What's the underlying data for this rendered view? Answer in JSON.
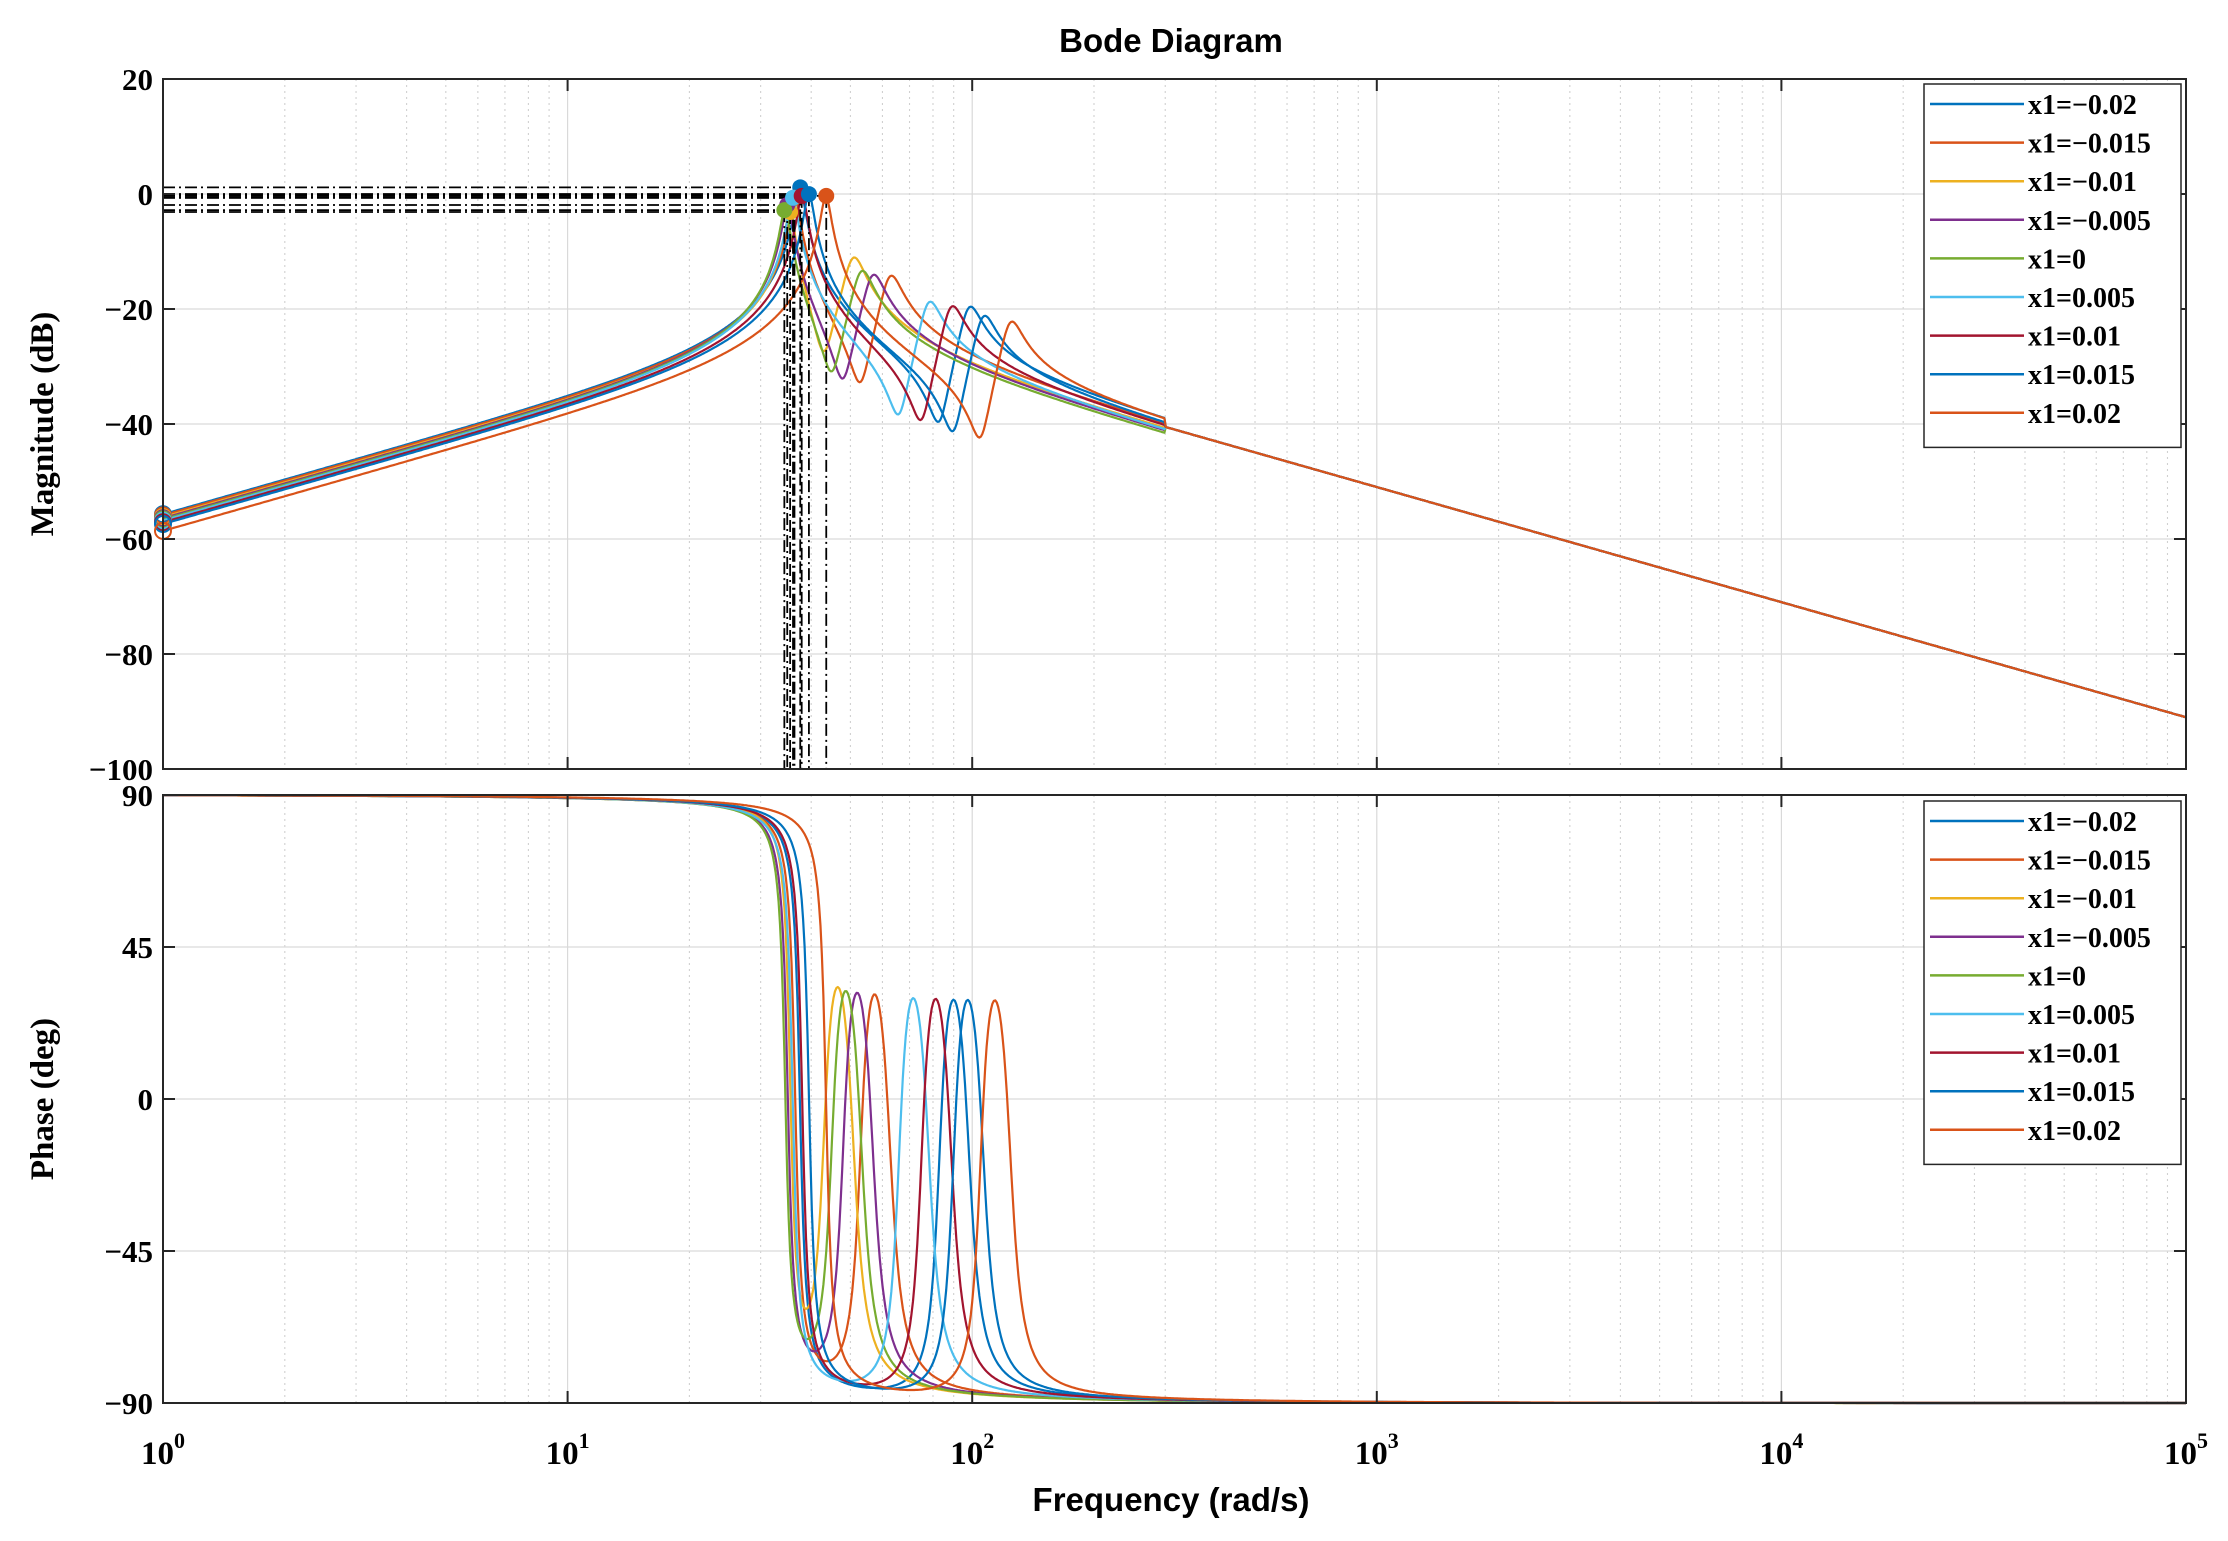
{
  "title": "Bode Diagram",
  "xlabel": "Frequency  (rad/s)",
  "chart_data": {
    "type": "line",
    "xscale": "log",
    "xlim": [
      1,
      100000
    ],
    "xtick_labels": [
      {
        "base": "10",
        "exp": "0"
      },
      {
        "base": "10",
        "exp": "1"
      },
      {
        "base": "10",
        "exp": "2"
      },
      {
        "base": "10",
        "exp": "3"
      },
      {
        "base": "10",
        "exp": "4"
      },
      {
        "base": "10",
        "exp": "5"
      }
    ],
    "grid": true,
    "legend_position": "top-right",
    "series": [
      {
        "name": "x1=−0.02",
        "color": "#0072BD",
        "wn": 37.5,
        "zeta": 0.025,
        "gain_db": -55.7,
        "wz": 83.0
      },
      {
        "name": "x1=−0.015",
        "color": "#D95319",
        "wn": 36.5,
        "zeta": 0.025,
        "gain_db": -55.9,
        "wz": 53.0
      },
      {
        "name": "x1=−0.01",
        "color": "#EDB120",
        "wn": 35.5,
        "zeta": 0.025,
        "gain_db": -56.2,
        "wz": 43.0
      },
      {
        "name": "x1=−0.005",
        "color": "#7E2F8E",
        "wn": 35.0,
        "zeta": 0.025,
        "gain_db": -56.4,
        "wz": 48.0
      },
      {
        "name": "x1=0",
        "color": "#77AC30",
        "wn": 34.5,
        "zeta": 0.025,
        "gain_db": -56.6,
        "wz": 45.0
      },
      {
        "name": "x1=0.005",
        "color": "#4DBEEE",
        "wn": 36.0,
        "zeta": 0.025,
        "gain_db": -56.8,
        "wz": 66.0
      },
      {
        "name": "x1=0.01",
        "color": "#A2142F",
        "wn": 38.0,
        "zeta": 0.025,
        "gain_db": -57.1,
        "wz": 75.0
      },
      {
        "name": "x1=0.015",
        "color": "#0072BD",
        "wn": 39.5,
        "zeta": 0.025,
        "gain_db": -57.4,
        "wz": 90.0
      },
      {
        "name": "x1=0.02",
        "color": "#D95319",
        "wn": 43.5,
        "zeta": 0.025,
        "gain_db": -58.6,
        "wz": 105.0
      }
    ],
    "panels": [
      {
        "id": "magnitude",
        "ylabel": "Magnitude (dB)",
        "ylim": [
          -100,
          20
        ],
        "yticks": [
          20,
          0,
          -20,
          -40,
          -60,
          -80,
          -100
        ],
        "ytick_labels": [
          "20",
          "0",
          "−20",
          "−40",
          "−60",
          "−80",
          "−100"
        ],
        "high_freq_asymptote": {
          "x": [
            300,
            100000
          ],
          "y": [
            -40.5,
            -91
          ]
        },
        "peak_markers": true
      },
      {
        "id": "phase",
        "ylabel": "Phase (deg)",
        "ylim": [
          -90,
          90
        ],
        "yticks": [
          90,
          45,
          0,
          -45,
          -90
        ],
        "ytick_labels": [
          "90",
          "45",
          "0",
          "−45",
          "−90"
        ]
      }
    ]
  }
}
